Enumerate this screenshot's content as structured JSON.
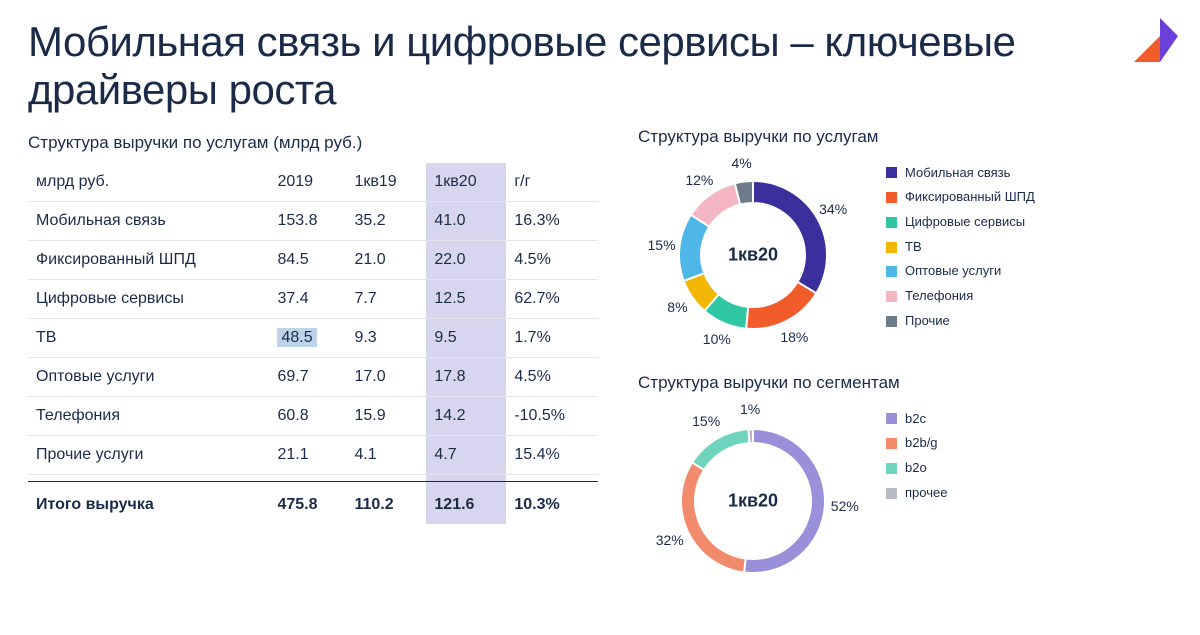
{
  "title": "Мобильная связь и цифровые сервисы – ключевые драйверы роста",
  "table": {
    "caption": "Структура выручки по услугам (млрд руб.)",
    "columns": [
      "млрд руб.",
      "2019",
      "1кв19",
      "1кв20",
      "г/г"
    ],
    "highlight_col_index": 3,
    "rows": [
      {
        "label": "Мобильная связь",
        "y2019": "153.8",
        "q1_19": "35.2",
        "q1_20": "41.0",
        "yoy": "16.3%"
      },
      {
        "label": "Фиксированный ШПД",
        "y2019": "84.5",
        "q1_19": "21.0",
        "q1_20": "22.0",
        "yoy": "4.5%"
      },
      {
        "label": "Цифровые сервисы",
        "y2019": "37.4",
        "q1_19": "7.7",
        "q1_20": "12.5",
        "yoy": "62.7%"
      },
      {
        "label": "ТВ",
        "y2019": "48.5",
        "q1_19": "9.3",
        "q1_20": "9.5",
        "yoy": "1.7%",
        "cell_highlight": "y2019"
      },
      {
        "label": "Оптовые услуги",
        "y2019": "69.7",
        "q1_19": "17.0",
        "q1_20": "17.8",
        "yoy": "4.5%"
      },
      {
        "label": "Телефония",
        "y2019": "60.8",
        "q1_19": "15.9",
        "q1_20": "14.2",
        "yoy": "-10.5%"
      },
      {
        "label": "Прочие услуги",
        "y2019": "21.1",
        "q1_19": "4.1",
        "q1_20": "4.7",
        "yoy": "15.4%"
      }
    ],
    "total": {
      "label": "Итого выручка",
      "y2019": "475.8",
      "q1_19": "110.2",
      "q1_20": "121.6",
      "yoy": "10.3%"
    }
  },
  "chart1": {
    "title": "Структура выручки по услугам",
    "center_label": "1кв20",
    "type": "donut",
    "inner_radius": 52,
    "outer_radius": 74,
    "label_radius": 92,
    "slices": [
      {
        "label": "Мобильная связь",
        "value": 34,
        "color": "#3b2e9d"
      },
      {
        "label": "Фиксированный ШПД",
        "value": 18,
        "color": "#f25b2a"
      },
      {
        "label": "Цифровые сервисы",
        "value": 10,
        "color": "#2fc6a3"
      },
      {
        "label": "ТВ",
        "value": 8,
        "color": "#f2b705"
      },
      {
        "label": "Оптовые услуги",
        "value": 15,
        "color": "#4fb6e8"
      },
      {
        "label": "Телефония",
        "value": 12,
        "color": "#f4b6c2"
      },
      {
        "label": "Прочие",
        "value": 4,
        "color": "#6e7b8b"
      }
    ]
  },
  "chart2": {
    "title": "Структура выручки по сегментам",
    "center_label": "1кв20",
    "type": "donut",
    "inner_radius": 58,
    "outer_radius": 72,
    "label_radius": 92,
    "slices": [
      {
        "label": "b2c",
        "value": 52,
        "color": "#9a8fd9"
      },
      {
        "label": "b2b/g",
        "value": 32,
        "color": "#f28b6b"
      },
      {
        "label": "b2o",
        "value": 15,
        "color": "#6fd4bd"
      },
      {
        "label": "прочее",
        "value": 1,
        "color": "#b8bcc2"
      }
    ]
  },
  "logo_colors": {
    "orange": "#f25b2a",
    "purple": "#6b3fd9"
  }
}
